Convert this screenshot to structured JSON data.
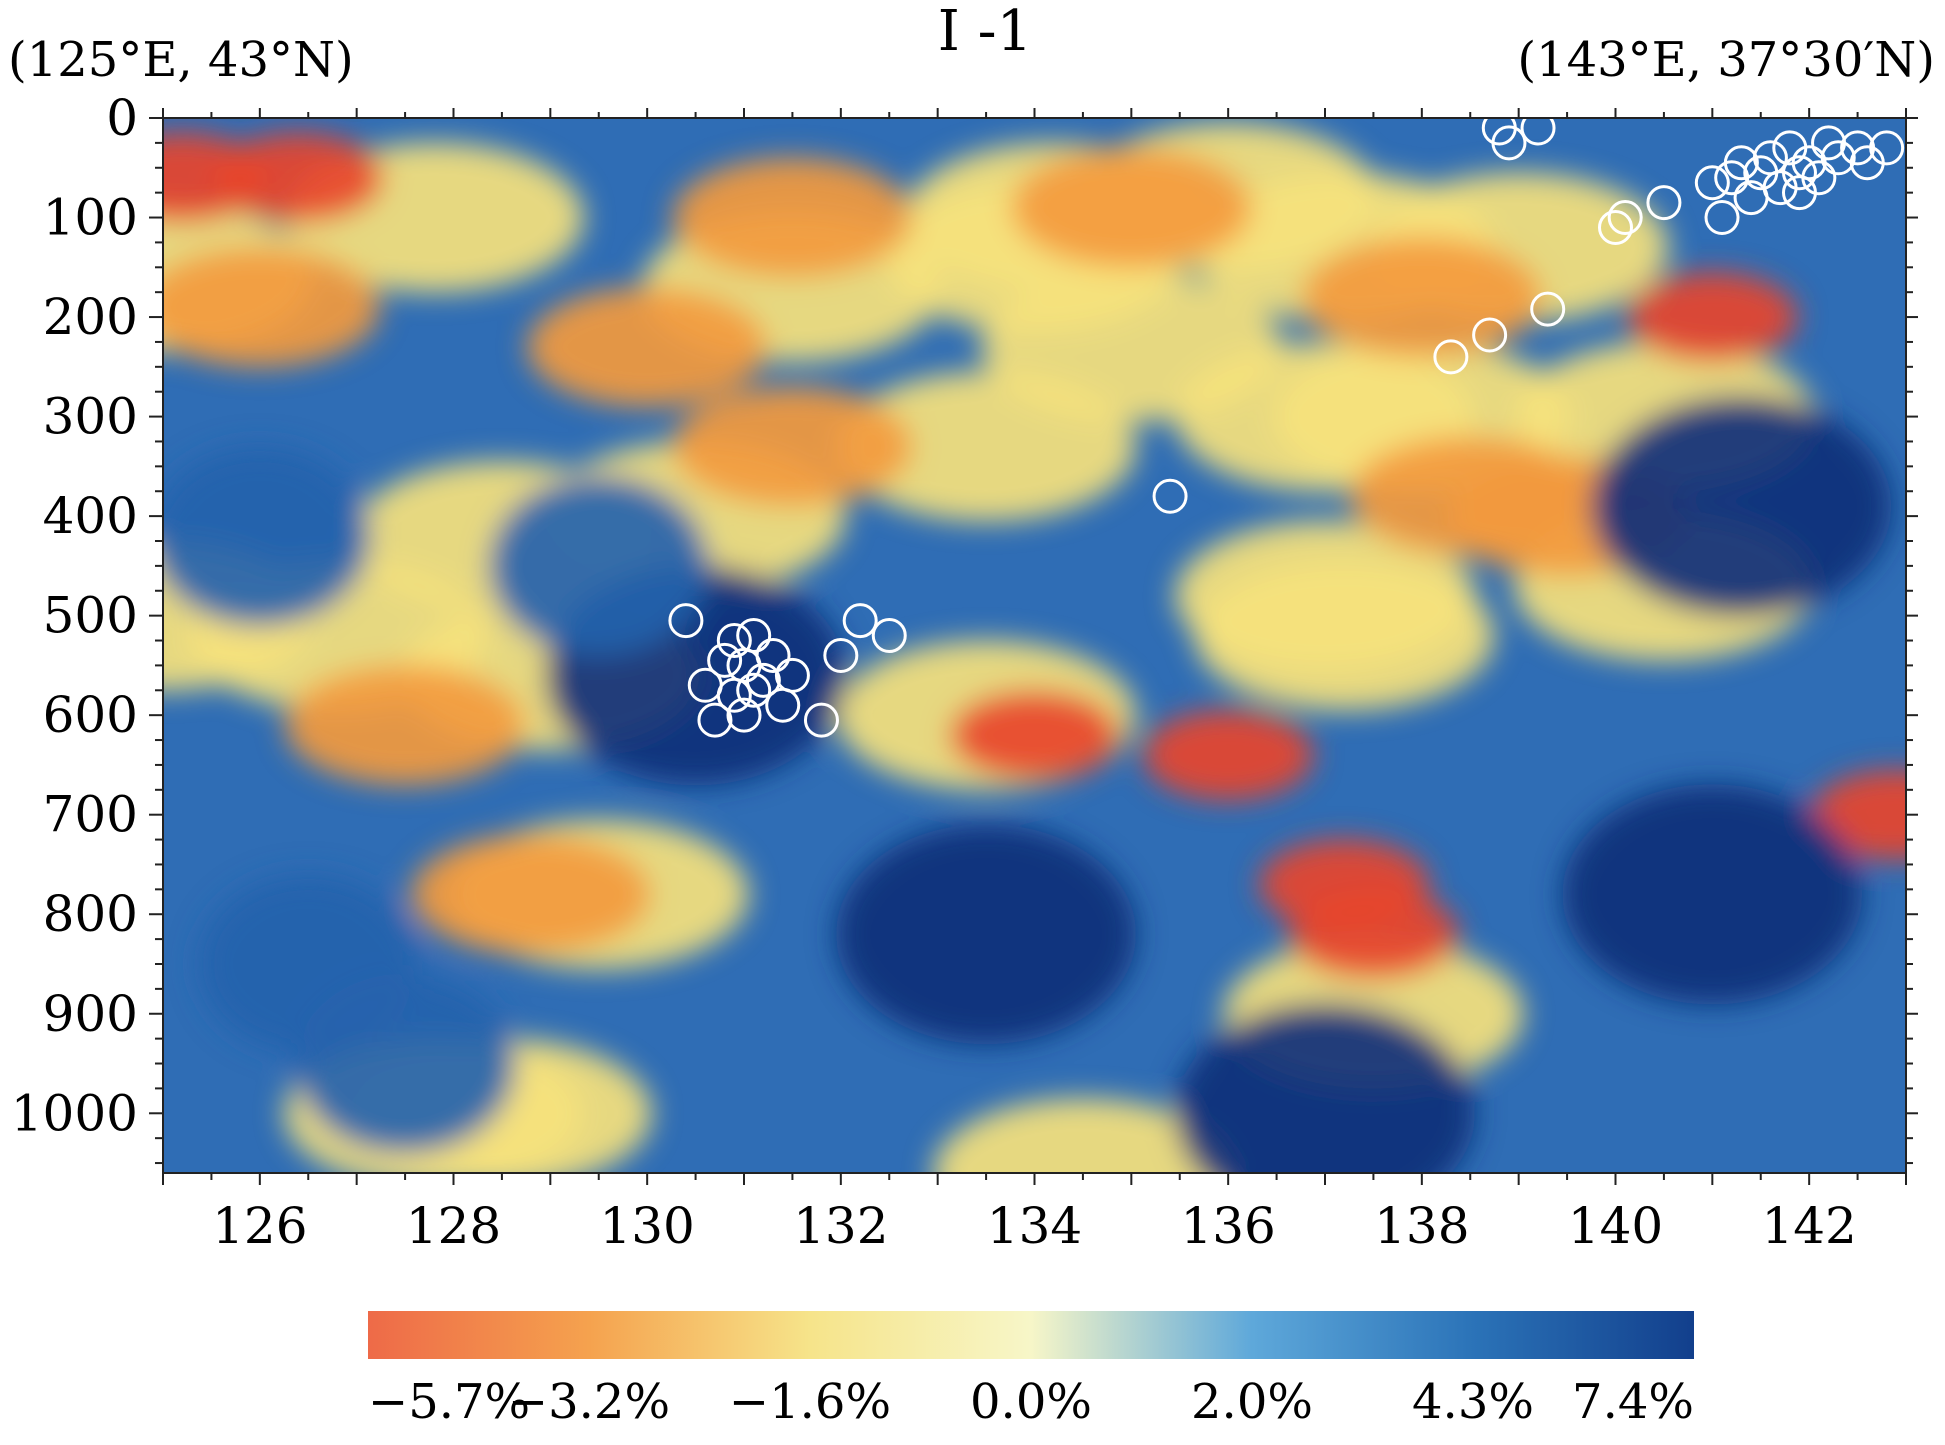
{
  "chart_data": {
    "type": "heatmap",
    "title": "I -1",
    "left_endpoint_label": "(125°E, 43°N)",
    "right_endpoint_label": "(143°E, 37°30′N)",
    "xlabel": "",
    "ylabel": "",
    "xlim": [
      125,
      143
    ],
    "ylim": [
      1060,
      0
    ],
    "x_ticks": [
      126,
      128,
      130,
      132,
      134,
      136,
      138,
      140,
      142
    ],
    "x_tick_labels": [
      "126",
      "128",
      "130",
      "132",
      "134",
      "136",
      "138",
      "140",
      "142"
    ],
    "y_ticks": [
      0,
      100,
      200,
      300,
      400,
      500,
      600,
      700,
      800,
      900,
      1000
    ],
    "y_tick_labels": [
      "0",
      "100",
      "200",
      "300",
      "400",
      "500",
      "600",
      "700",
      "800",
      "900",
      "1000"
    ],
    "grid": false,
    "colorbar": {
      "placement": "bottom",
      "labels": [
        "−5.7%",
        "−3.2%",
        "−1.6%",
        "0.0%",
        "2.0%",
        "4.3%",
        "7.4%"
      ],
      "colors": [
        "#ee6a48",
        "#f5a24e",
        "#f6e48a",
        "#f7f6c8",
        "#5ea8da",
        "#2b73b8",
        "#123f8c"
      ]
    },
    "colors": {
      "strong_negative": "#e8452a",
      "negative": "#f39a3e",
      "weak_negative": "#f6e27c",
      "weak_positive": "#4d8fcb",
      "positive": "#2563ad",
      "strong_positive": "#0f2f7a"
    },
    "earthquakes": [
      {
        "x": 130.4,
        "y": 505
      },
      {
        "x": 130.9,
        "y": 525
      },
      {
        "x": 131.1,
        "y": 520
      },
      {
        "x": 130.8,
        "y": 545
      },
      {
        "x": 131.0,
        "y": 550
      },
      {
        "x": 131.3,
        "y": 540
      },
      {
        "x": 130.6,
        "y": 570
      },
      {
        "x": 130.9,
        "y": 580
      },
      {
        "x": 131.2,
        "y": 565
      },
      {
        "x": 131.5,
        "y": 560
      },
      {
        "x": 130.7,
        "y": 605
      },
      {
        "x": 131.0,
        "y": 600
      },
      {
        "x": 131.4,
        "y": 590
      },
      {
        "x": 131.8,
        "y": 605
      },
      {
        "x": 132.0,
        "y": 540
      },
      {
        "x": 132.2,
        "y": 505
      },
      {
        "x": 132.5,
        "y": 520
      },
      {
        "x": 131.1,
        "y": 575
      },
      {
        "x": 135.4,
        "y": 380
      },
      {
        "x": 138.3,
        "y": 240
      },
      {
        "x": 138.7,
        "y": 218
      },
      {
        "x": 139.3,
        "y": 192
      },
      {
        "x": 140.0,
        "y": 110
      },
      {
        "x": 140.1,
        "y": 100
      },
      {
        "x": 140.5,
        "y": 85
      },
      {
        "x": 141.0,
        "y": 65
      },
      {
        "x": 141.1,
        "y": 100
      },
      {
        "x": 141.3,
        "y": 45
      },
      {
        "x": 141.4,
        "y": 80
      },
      {
        "x": 141.5,
        "y": 55
      },
      {
        "x": 141.6,
        "y": 40
      },
      {
        "x": 141.7,
        "y": 70
      },
      {
        "x": 141.8,
        "y": 30
      },
      {
        "x": 141.9,
        "y": 55
      },
      {
        "x": 142.0,
        "y": 45
      },
      {
        "x": 142.1,
        "y": 60
      },
      {
        "x": 142.2,
        "y": 25
      },
      {
        "x": 142.3,
        "y": 40
      },
      {
        "x": 142.5,
        "y": 30
      },
      {
        "x": 142.6,
        "y": 45
      },
      {
        "x": 142.8,
        "y": 30
      },
      {
        "x": 141.2,
        "y": 60
      },
      {
        "x": 141.9,
        "y": 75
      },
      {
        "x": 138.8,
        "y": 10
      },
      {
        "x": 138.9,
        "y": 25
      },
      {
        "x": 139.2,
        "y": 10
      }
    ],
    "anomaly_regions": [
      {
        "level": "weak_negative",
        "x": [
          125.0,
          131.5,
          135.0,
          133.5,
          130.5,
          128.5,
          125.0
        ],
        "y": [
          160,
          170,
          230,
          330,
          400,
          420,
          500
        ]
      },
      {
        "level": "weak_negative",
        "x": [
          127.8,
          134.2,
          134.0,
          136.0,
          137.2,
          139.0,
          138.0
        ],
        "y": [
          100,
          100,
          140,
          80,
          130,
          130,
          300
        ]
      },
      {
        "level": "weak_negative",
        "x": [
          137.0,
          140.5,
          140.5,
          137.0
        ],
        "y": [
          300,
          300,
          470,
          480
        ]
      },
      {
        "level": "weak_negative",
        "x": [
          126.8,
          129.0,
          129.5,
          128.5,
          127.8
        ],
        "y": [
          520,
          560,
          780,
          1000,
          1000
        ]
      },
      {
        "level": "weak_negative",
        "x": [
          133.5,
          137.2,
          137.5,
          134.5
        ],
        "y": [
          600,
          520,
          900,
          1060
        ]
      },
      {
        "level": "negative",
        "x": [
          126.0,
          130.0,
          131.5
        ],
        "y": [
          190,
          230,
          330
        ]
      },
      {
        "level": "negative",
        "x": [
          131.5,
          135.0,
          138.0
        ],
        "y": [
          100,
          90,
          180
        ]
      },
      {
        "level": "negative",
        "x": [
          138.5,
          139.5
        ],
        "y": [
          380,
          400
        ]
      },
      {
        "level": "negative",
        "x": [
          127.5,
          128.8
        ],
        "y": [
          610,
          780
        ]
      },
      {
        "level": "strong_negative",
        "x": [
          134.0,
          136.0
        ],
        "y": [
          620,
          640
        ]
      },
      {
        "level": "strong_negative",
        "x": [
          137.2,
          137.5
        ],
        "y": [
          770,
          820
        ]
      },
      {
        "level": "strong_negative",
        "x": [
          141.0,
          142.9
        ],
        "y": [
          200,
          700
        ]
      },
      {
        "level": "strong_negative",
        "x": [
          125.2,
          126.4
        ],
        "y": [
          60,
          60
        ]
      },
      {
        "level": "strong_positive",
        "x": [
          130.5,
          133.5,
          137.0,
          141.0,
          141.3
        ],
        "y": [
          560,
          820,
          1000,
          780,
          390
        ]
      },
      {
        "level": "positive",
        "x": [
          126.0,
          126.5,
          127.5,
          129.5
        ],
        "y": [
          420,
          850,
          950,
          450
        ]
      }
    ]
  }
}
